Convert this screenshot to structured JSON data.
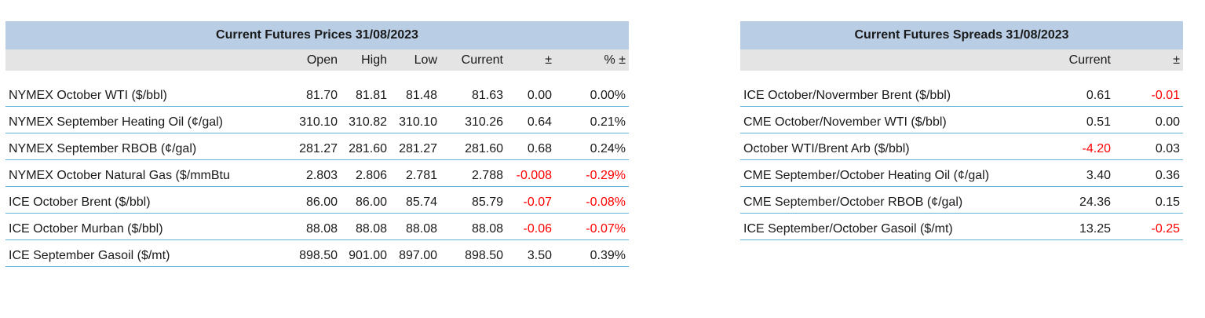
{
  "prices": {
    "title": "Current Futures Prices 31/08/2023",
    "columns": [
      "",
      "Open",
      "High",
      "Low",
      "Current",
      "±",
      "% ±"
    ],
    "rows": [
      {
        "label": "NYMEX October WTI ($/bbl)",
        "open": "81.70",
        "high": "81.81",
        "low": "81.48",
        "current": "81.63",
        "change": "0.00",
        "pct": "0.00%",
        "neg": false
      },
      {
        "label": "NYMEX September Heating Oil (¢/gal)",
        "open": "310.10",
        "high": "310.82",
        "low": "310.10",
        "current": "310.26",
        "change": "0.64",
        "pct": "0.21%",
        "neg": false
      },
      {
        "label": "NYMEX September RBOB (¢/gal)",
        "open": "281.27",
        "high": "281.60",
        "low": "281.27",
        "current": "281.60",
        "change": "0.68",
        "pct": "0.24%",
        "neg": false
      },
      {
        "label": "NYMEX October Natural Gas ($/mmBtu",
        "open": "2.803",
        "high": "2.806",
        "low": "2.781",
        "current": "2.788",
        "change": "-0.008",
        "pct": "-0.29%",
        "neg": true
      },
      {
        "label": "ICE October Brent ($/bbl)",
        "open": "86.00",
        "high": "86.00",
        "low": "85.74",
        "current": "85.79",
        "change": "-0.07",
        "pct": "-0.08%",
        "neg": true
      },
      {
        "label": "ICE October Murban ($/bbl)",
        "open": "88.08",
        "high": "88.08",
        "low": "88.08",
        "current": "88.08",
        "change": "-0.06",
        "pct": "-0.07%",
        "neg": true
      },
      {
        "label": "ICE September Gasoil ($/mt)",
        "open": "898.50",
        "high": "901.00",
        "low": "897.00",
        "current": "898.50",
        "change": "3.50",
        "pct": "0.39%",
        "neg": false
      }
    ]
  },
  "spreads": {
    "title": "Current Futures Spreads 31/08/2023",
    "columns": [
      "",
      "Current",
      "±"
    ],
    "rows": [
      {
        "label": "ICE October/Novermber Brent ($/bbl)",
        "current": "0.61",
        "change": "-0.01",
        "current_neg": false,
        "change_neg": true
      },
      {
        "label": "CME October/November WTI ($/bbl)",
        "current": "0.51",
        "change": "0.00",
        "current_neg": false,
        "change_neg": false
      },
      {
        "label": "October WTI/Brent Arb ($/bbl)",
        "current": "-4.20",
        "change": "0.03",
        "current_neg": true,
        "change_neg": false
      },
      {
        "label": "CME September/October Heating Oil (¢/gal)",
        "current": "3.40",
        "change": "0.36",
        "current_neg": false,
        "change_neg": false
      },
      {
        "label": "CME September/October RBOB (¢/gal)",
        "current": "24.36",
        "change": "0.15",
        "current_neg": false,
        "change_neg": false
      },
      {
        "label": "ICE September/October Gasoil ($/mt)",
        "current": "13.25",
        "change": "-0.25",
        "current_neg": false,
        "change_neg": true
      }
    ]
  },
  "colors": {
    "title_bg": "#b9cde4",
    "header_bg": "#e4e4e4",
    "row_border": "#5fb3d3",
    "negative": "#ff0000"
  }
}
